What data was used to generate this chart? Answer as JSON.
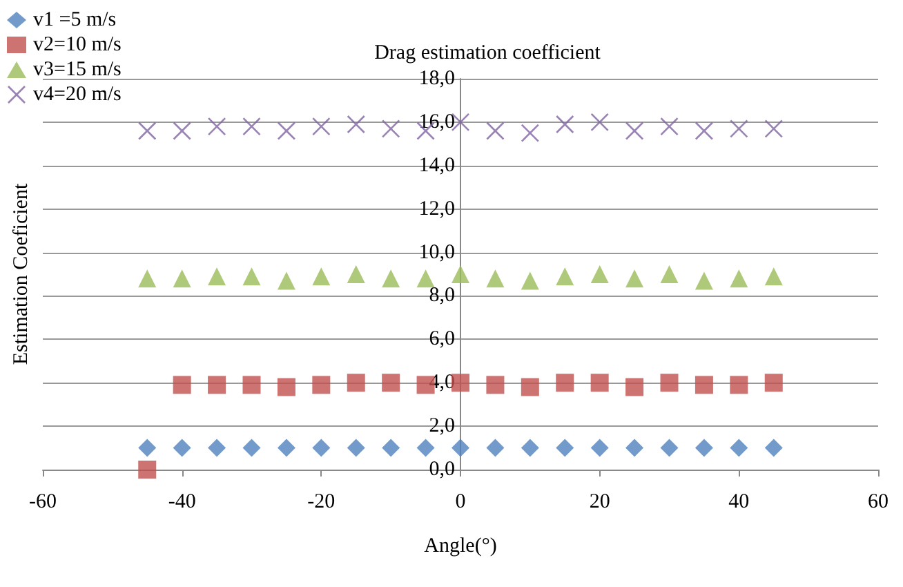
{
  "chart_data": {
    "type": "scatter",
    "title": "Drag estimation coefficient",
    "xlabel": "Angle(°)",
    "ylabel": "Estimation Coeficient",
    "x": [
      -45,
      -40,
      -35,
      -30,
      -25,
      -20,
      -15,
      -10,
      -5,
      0,
      5,
      10,
      15,
      20,
      25,
      30,
      35,
      40,
      45
    ],
    "series": [
      {
        "name": "v1 =5 m/s",
        "color": "#4f81bd",
        "marker": "diamond",
        "values": [
          1.0,
          1.0,
          1.0,
          1.0,
          1.0,
          1.0,
          1.0,
          1.0,
          1.0,
          1.0,
          1.0,
          1.0,
          1.0,
          1.0,
          1.0,
          1.0,
          1.0,
          1.0,
          1.0
        ]
      },
      {
        "name": "v2=10 m/s",
        "color": "#c0504d",
        "marker": "square",
        "values": [
          0.0,
          3.9,
          3.9,
          3.9,
          3.8,
          3.9,
          4.0,
          4.0,
          3.9,
          4.0,
          3.9,
          3.8,
          4.0,
          4.0,
          3.8,
          4.0,
          3.9,
          3.9,
          4.0
        ]
      },
      {
        "name": "v3=15 m/s",
        "color": "#9bbb59",
        "marker": "triangle",
        "values": [
          8.8,
          8.8,
          8.9,
          8.9,
          8.7,
          8.9,
          9.0,
          8.8,
          8.8,
          9.0,
          8.8,
          8.7,
          8.9,
          9.0,
          8.8,
          9.0,
          8.7,
          8.8,
          8.9
        ]
      },
      {
        "name": "v4=20 m/s",
        "color": "#8064a2",
        "marker": "cross",
        "values": [
          15.6,
          15.6,
          15.8,
          15.8,
          15.6,
          15.8,
          15.9,
          15.7,
          15.6,
          16.0,
          15.6,
          15.5,
          15.9,
          16.0,
          15.6,
          15.8,
          15.6,
          15.7,
          15.7
        ]
      }
    ],
    "xlim": [
      -60,
      60
    ],
    "xticks": [
      -60,
      -40,
      -20,
      0,
      20,
      40,
      60
    ],
    "ylim": [
      0,
      18
    ],
    "yticks": [
      {
        "value": 0,
        "label": "0,0"
      },
      {
        "value": 2,
        "label": "2,0"
      },
      {
        "value": 4,
        "label": "4,0"
      },
      {
        "value": 6,
        "label": "6,0"
      },
      {
        "value": 8,
        "label": "8,0"
      },
      {
        "value": 10,
        "label": "10,0"
      },
      {
        "value": 12,
        "label": "12,0"
      },
      {
        "value": 14,
        "label": "14,0"
      },
      {
        "value": 16,
        "label": "16,0"
      },
      {
        "value": 18,
        "label": "18,0"
      }
    ],
    "grid": "y",
    "legend": "top left"
  }
}
